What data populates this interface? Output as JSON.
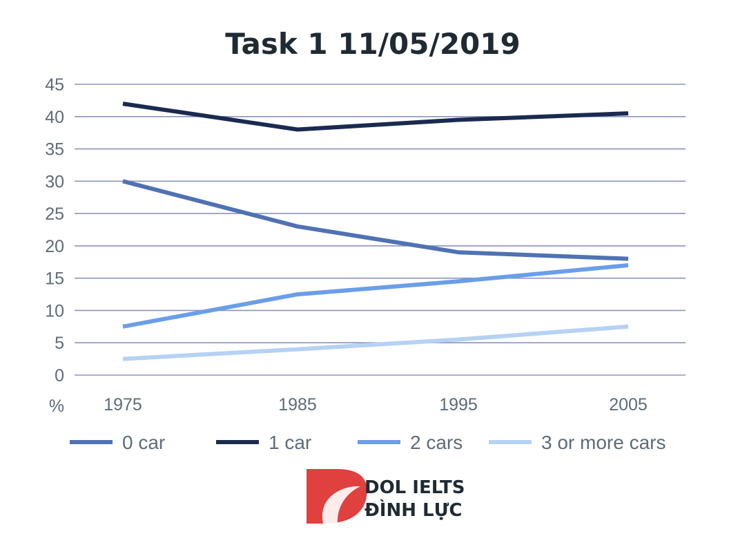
{
  "chart_data": {
    "type": "line",
    "title": "Task 1 11/05/2019",
    "ylabel": "%",
    "xlabel": "",
    "x": [
      "1975",
      "1985",
      "1995",
      "2005"
    ],
    "ylim": [
      0,
      45
    ],
    "yticks": [
      0,
      5,
      10,
      15,
      20,
      25,
      30,
      35,
      40,
      45
    ],
    "grid": true,
    "legend_position": "bottom",
    "series": [
      {
        "name": "0 car",
        "values": [
          30,
          23,
          19,
          18
        ],
        "color": "#4f72b3"
      },
      {
        "name": "1 car",
        "values": [
          42,
          38,
          39.5,
          40.5
        ],
        "color": "#1b2a4f"
      },
      {
        "name": "2 cars",
        "values": [
          7.5,
          12.5,
          14.5,
          17
        ],
        "color": "#6a9ee8"
      },
      {
        "name": "3 or more cars",
        "values": [
          2.5,
          4,
          5.5,
          7.5
        ],
        "color": "#b6d1f5"
      }
    ]
  },
  "brand": {
    "line1": "DOL IELTS",
    "line2": "ĐÌNH LỰC",
    "logo_color": "#e0403e",
    "logo_icon": "dol-logo-icon"
  }
}
